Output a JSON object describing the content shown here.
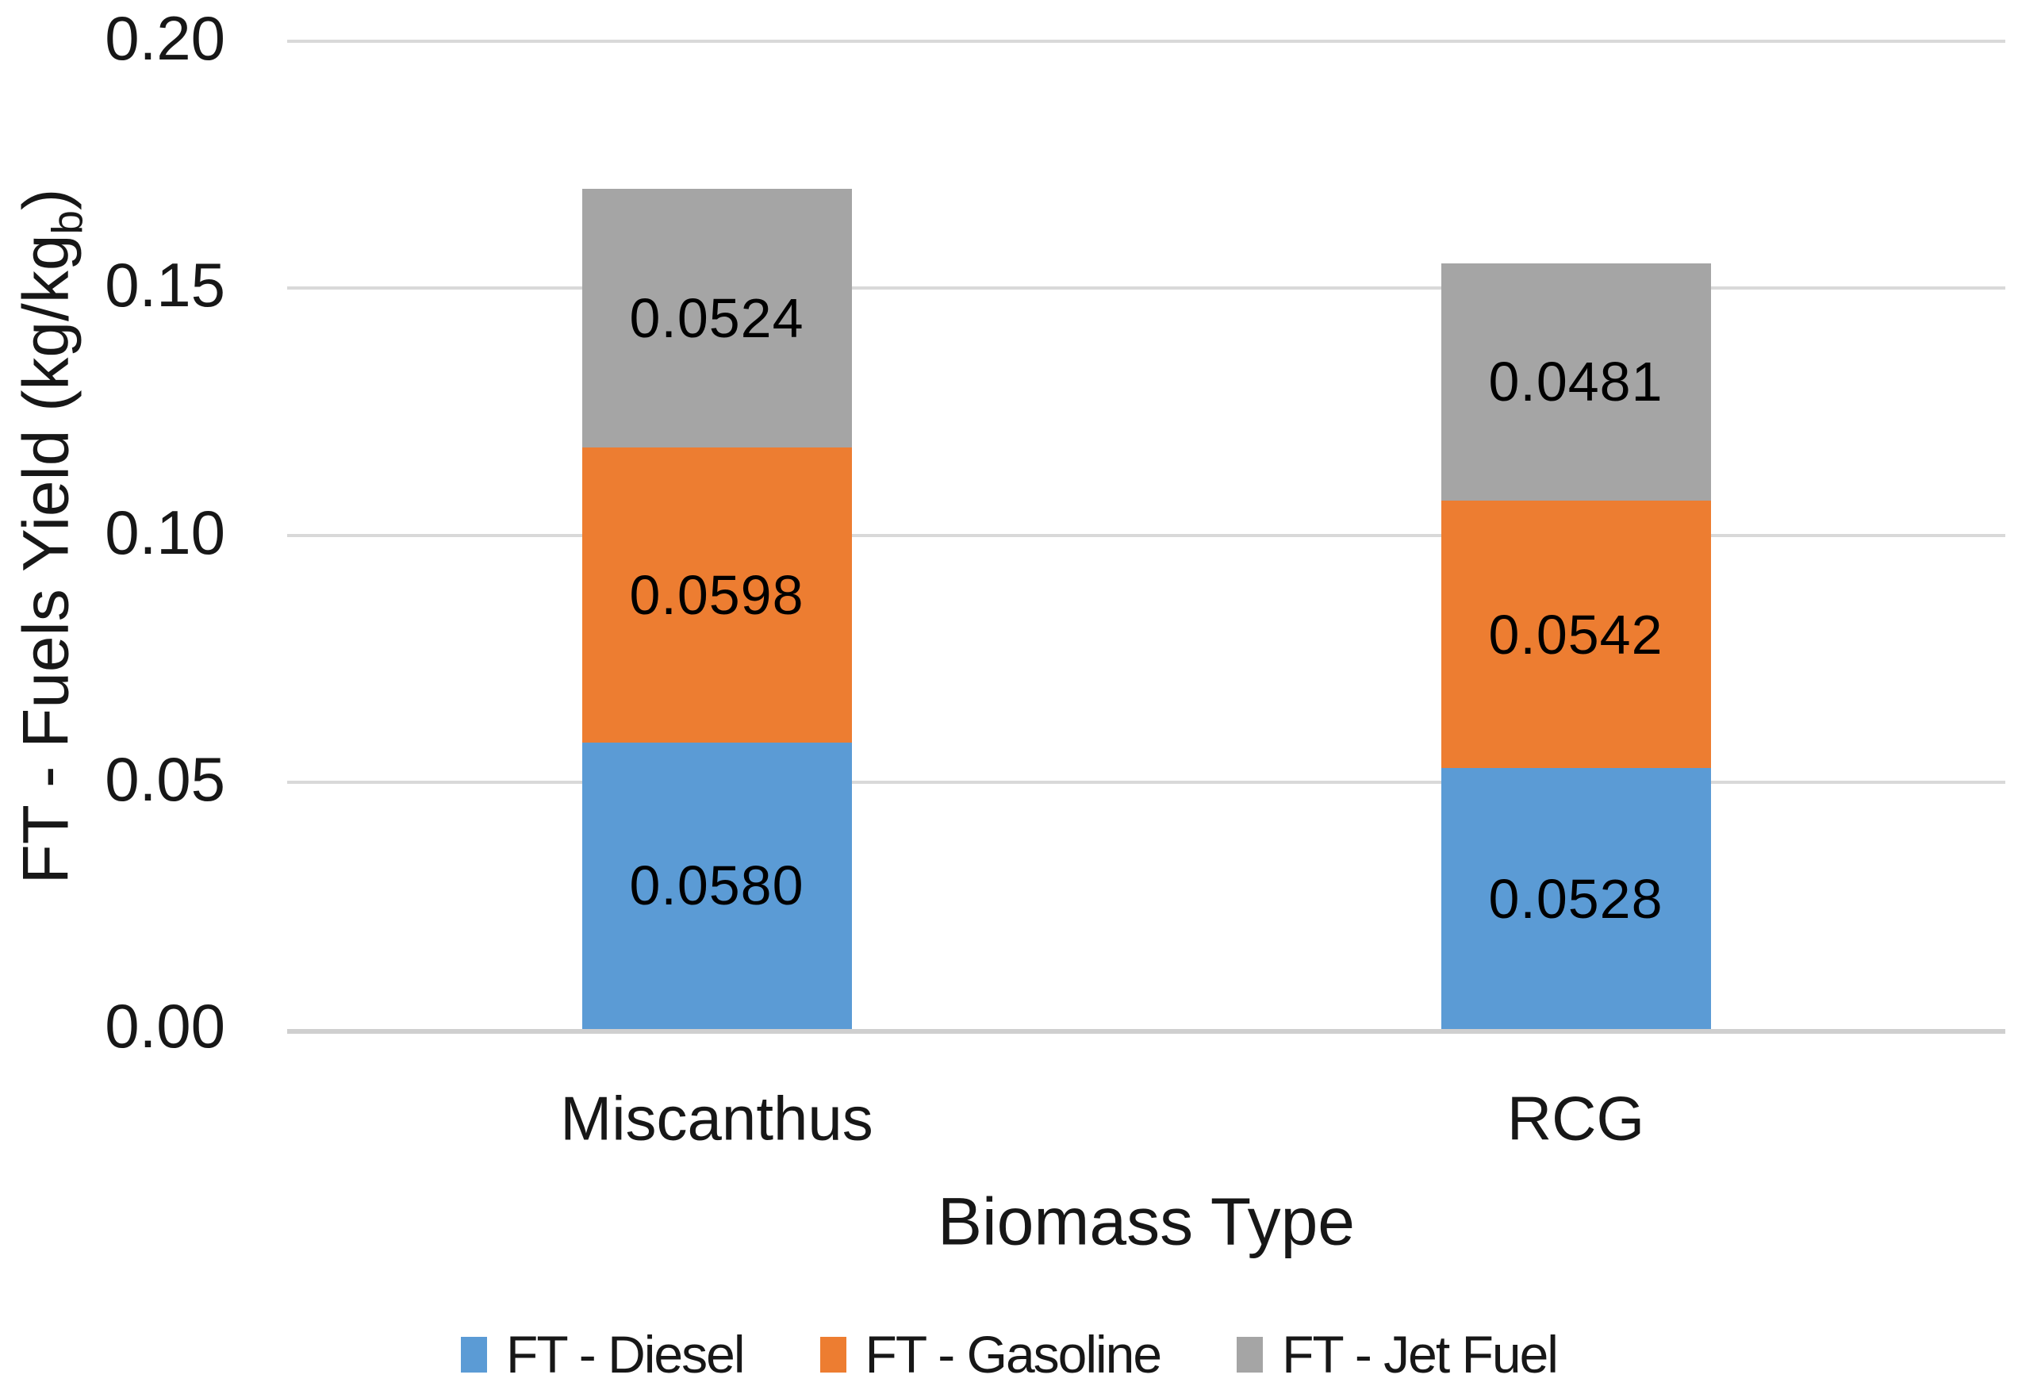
{
  "chart_data": {
    "type": "bar",
    "stacked": true,
    "title": "",
    "categories": [
      "Miscanthus",
      "RCG"
    ],
    "series": [
      {
        "name": "FT - Diesel",
        "color": "#5b9bd5",
        "values": [
          0.058,
          0.0528
        ],
        "value_labels": [
          "0.0580",
          "0.0528"
        ]
      },
      {
        "name": "FT - Gasoline",
        "color": "#ed7d31",
        "values": [
          0.0598,
          0.0542
        ],
        "value_labels": [
          "0.0598",
          "0.0542"
        ]
      },
      {
        "name": "FT - Jet Fuel",
        "color": "#a5a5a5",
        "values": [
          0.0524,
          0.0481
        ],
        "value_labels": [
          "0.0524",
          "0.0481"
        ]
      }
    ],
    "totals": [
      0.1702,
      0.1551
    ],
    "xlabel": "Biomass Type",
    "ylabel": "FT - Fuels Yield (kg/kgb)",
    "ylabel_parts": {
      "prefix": "FT - Fuels Yield (kg/kg",
      "sub": "b",
      "suffix": ")"
    },
    "ylim": [
      0.0,
      0.2
    ],
    "yticks": [
      0.0,
      0.05,
      0.1,
      0.15,
      0.2
    ],
    "ytick_labels": [
      "0.00",
      "0.05",
      "0.10",
      "0.15",
      "0.20"
    ],
    "grid": true,
    "legend_position": "bottom",
    "colors": {
      "gridline": "#d9d9d9",
      "axis_line": "#cfcfcf",
      "text": "#171717",
      "data_label": "#000000"
    }
  }
}
